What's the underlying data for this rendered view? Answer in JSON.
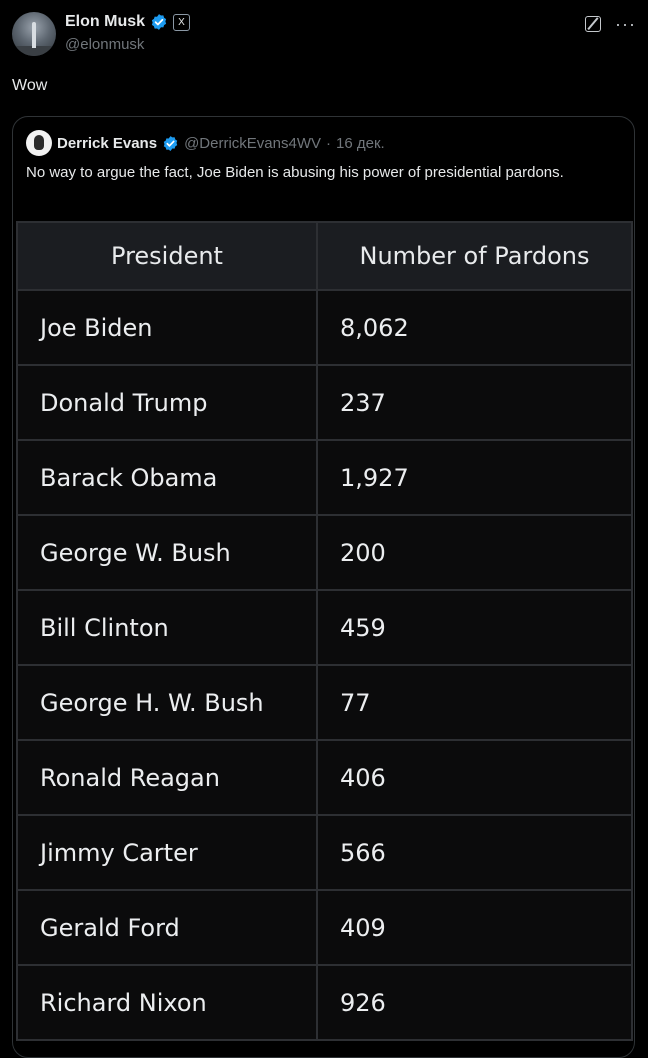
{
  "tweet": {
    "author_name": "Elon Musk",
    "author_handle": "@elonmusk",
    "affiliation_badge": "X",
    "text": "Wow",
    "icons": [
      "verified-badge-icon",
      "grok-icon",
      "more-icon"
    ]
  },
  "quoted_tweet": {
    "author_name": "Derrick Evans",
    "author_handle": "@DerrickEvans4WV",
    "separator": "·",
    "date": "16 дек.",
    "text": "No way to argue the fact, Joe Biden is abusing his power of presidential pardons.",
    "table": {
      "headers": [
        "President",
        "Number of Pardons"
      ],
      "rows": [
        [
          "Joe Biden",
          "8,062"
        ],
        [
          "Donald Trump",
          "237"
        ],
        [
          "Barack Obama",
          "1,927"
        ],
        [
          "George W. Bush",
          "200"
        ],
        [
          "Bill Clinton",
          "459"
        ],
        [
          "George H. W. Bush",
          "77"
        ],
        [
          "Ronald Reagan",
          "406"
        ],
        [
          "Jimmy Carter",
          "566"
        ],
        [
          "Gerald Ford",
          "409"
        ],
        [
          "Richard Nixon",
          "926"
        ]
      ]
    }
  },
  "colors": {
    "background": "#000000",
    "text": "#e7e9ea",
    "muted": "#71767b",
    "verified": "#1d9bf0",
    "border": "#2f3336"
  }
}
